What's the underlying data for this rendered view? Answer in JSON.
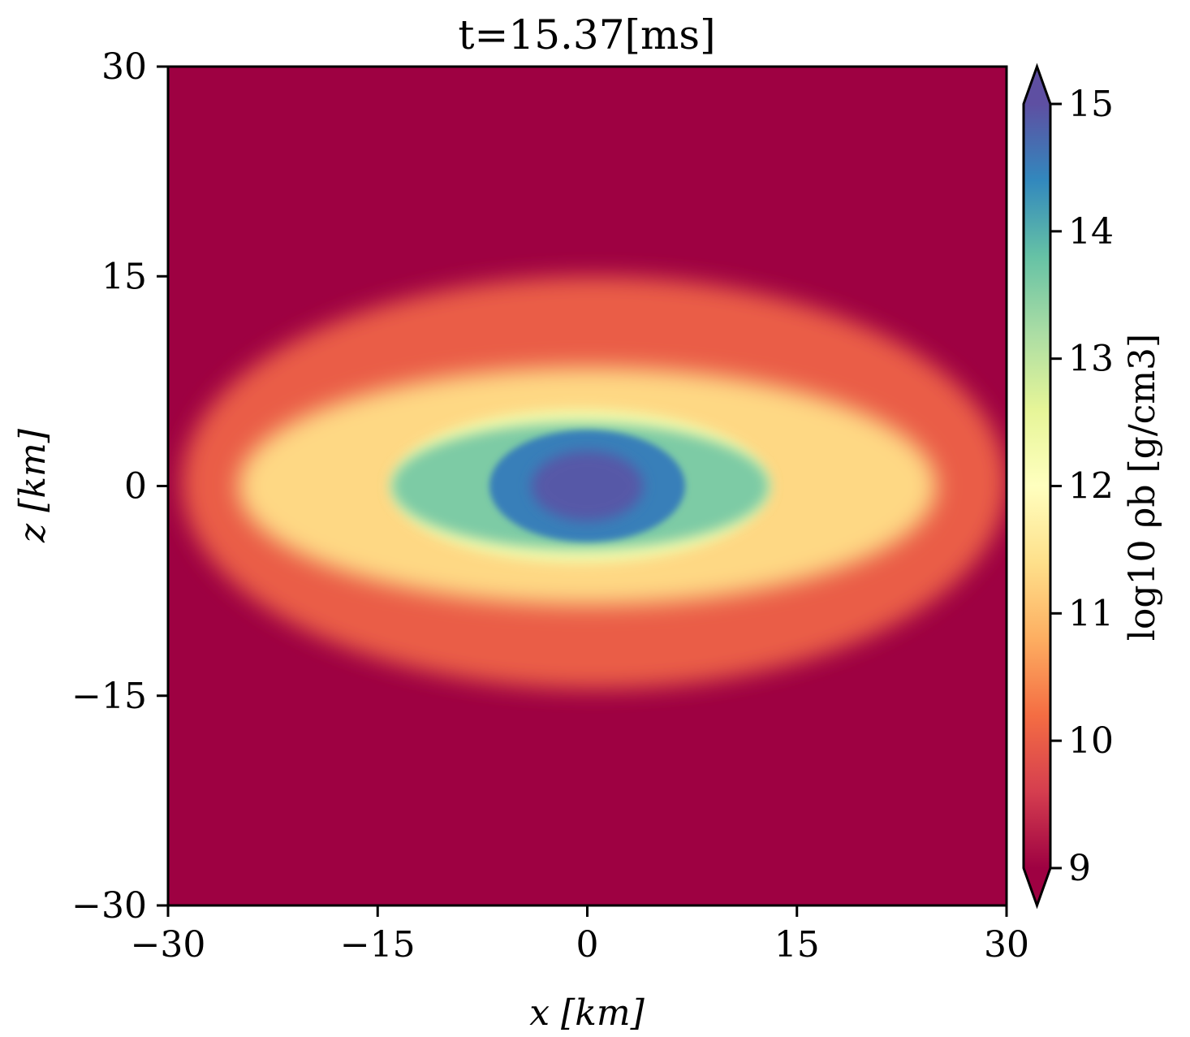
{
  "chart_data": {
    "type": "heatmap",
    "title": "t=15.37[ms]",
    "xlabel": "x [km]",
    "ylabel": "z [km]",
    "xlim": [
      -30,
      30
    ],
    "ylim": [
      -30,
      30
    ],
    "xticks": [
      -30,
      -15,
      0,
      15,
      30
    ],
    "yticks": [
      -30,
      -15,
      0,
      15,
      30
    ],
    "xtick_labels": [
      "−30",
      "−15",
      "0",
      "15",
      "30"
    ],
    "ytick_labels": [
      "−30",
      "−15",
      "0",
      "15",
      "30"
    ],
    "colorbar": {
      "label": "log10 ρb [g/cm3]",
      "range": [
        9,
        15
      ],
      "ticks": [
        9,
        10,
        11,
        12,
        13,
        14,
        15
      ],
      "tick_labels": [
        "9",
        "10",
        "11",
        "12",
        "13",
        "14",
        "15"
      ],
      "extend": "both",
      "colormap": "Spectral",
      "colormap_colors": [
        "#9e0142",
        "#d53e4f",
        "#f46d43",
        "#fdae61",
        "#fee08b",
        "#ffffbf",
        "#e6f598",
        "#abdda4",
        "#66c2a5",
        "#3288bd",
        "#5e4fa2"
      ]
    },
    "background_value": 9.0,
    "structures": [
      {
        "name": "envelope",
        "x_range": [
          -29,
          30
        ],
        "z_range": [
          -14.5,
          15
        ],
        "log10_rho": 10.0
      },
      {
        "name": "hot-lobes",
        "x_range": [
          -25,
          25
        ],
        "z_range": [
          -8.5,
          8.5
        ],
        "log10_rho": 11.3
      },
      {
        "name": "disk",
        "x_range": [
          -14,
          13
        ],
        "z_range": [
          -5.5,
          5.5
        ],
        "log10_rho": 12.3
      },
      {
        "name": "core-outer",
        "x_range": [
          -14,
          13
        ],
        "z_range": [
          -4.5,
          4.5
        ],
        "log10_rho": 13.6
      },
      {
        "name": "core",
        "x_range": [
          -7,
          7
        ],
        "z_range": [
          -4,
          4
        ],
        "log10_rho": 14.5
      },
      {
        "name": "center",
        "x_range": [
          -4,
          4
        ],
        "z_range": [
          -2.5,
          2.5
        ],
        "log10_rho": 14.9
      }
    ]
  }
}
